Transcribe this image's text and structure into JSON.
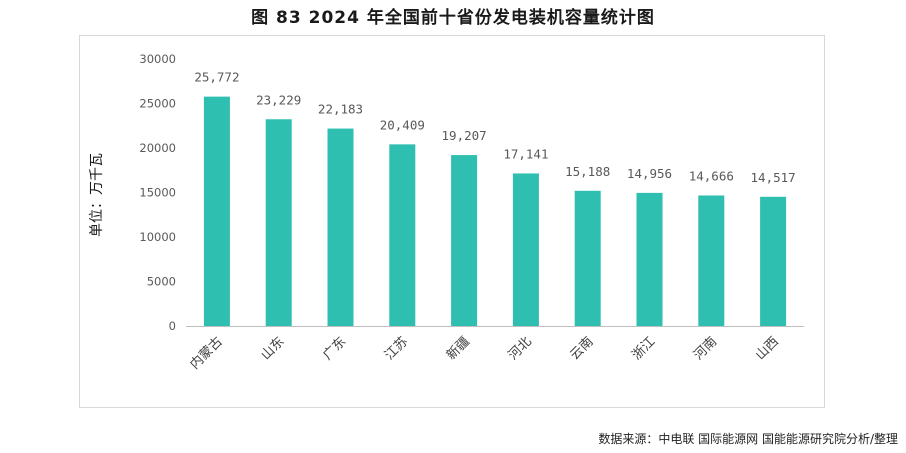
{
  "title": "图 83 2024 年全国前十省份发电装机容量统计图",
  "source": "数据来源：中电联 国际能源网 国能能源研究院分析/整理",
  "colors": {
    "bar": "#2ebfb1",
    "axis": "#bfbfbf"
  },
  "chart_data": {
    "type": "bar",
    "title": "图 83 2024 年全国前十省份发电装机容量统计图",
    "xlabel": "",
    "ylabel": "单位：万千瓦",
    "ylim": [
      0,
      30000
    ],
    "yticks": [
      0,
      5000,
      10000,
      15000,
      20000,
      25000,
      30000
    ],
    "categories": [
      "内蒙古",
      "山东",
      "广东",
      "江苏",
      "新疆",
      "河北",
      "云南",
      "浙江",
      "河南",
      "山西"
    ],
    "values": [
      25772,
      23229,
      22183,
      20409,
      19207,
      17141,
      15188,
      14956,
      14666,
      14517
    ],
    "data_labels": [
      "25,772",
      "23,229",
      "22,183",
      "20,409",
      "19,207",
      "17,141",
      "15,188",
      "14,956",
      "14,666",
      "14,517"
    ],
    "grid": false,
    "legend": "none"
  }
}
